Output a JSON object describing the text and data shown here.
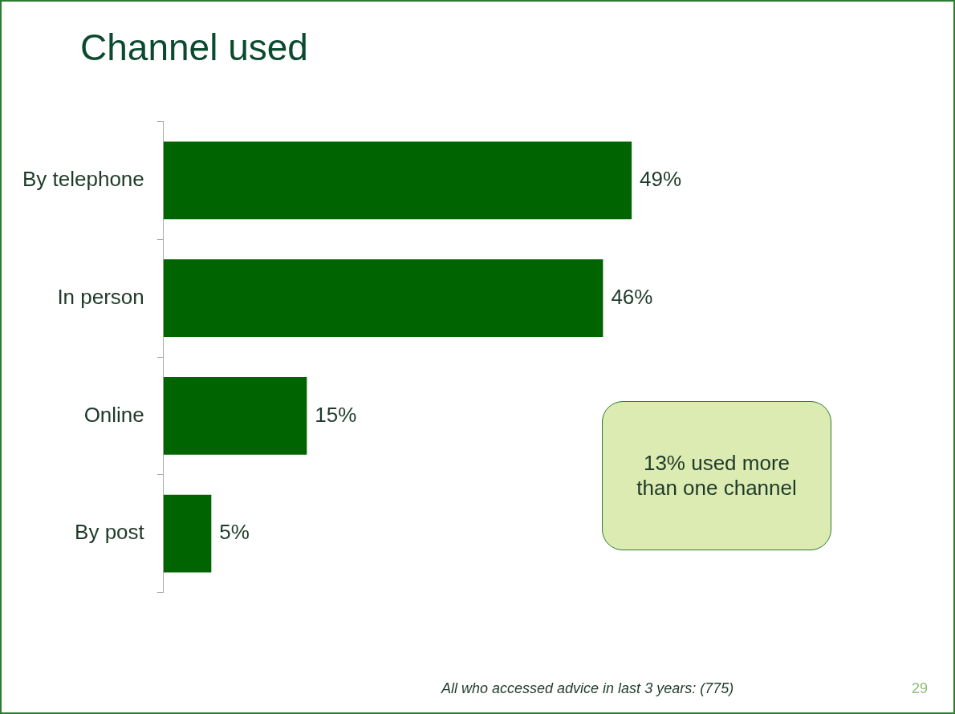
{
  "chart_data": {
    "type": "bar",
    "orientation": "horizontal",
    "title": "Channel used",
    "categories": [
      "By telephone",
      "In person",
      "Online",
      "By post"
    ],
    "values": [
      49,
      46,
      15,
      5
    ],
    "value_labels": [
      "49%",
      "46%",
      "15%",
      "5%"
    ],
    "color": "#006400",
    "legend": false,
    "grid": false,
    "annotations": [
      "13% used more than one channel",
      "All who accessed advice in last 3 years: (775)",
      "29"
    ]
  }
}
